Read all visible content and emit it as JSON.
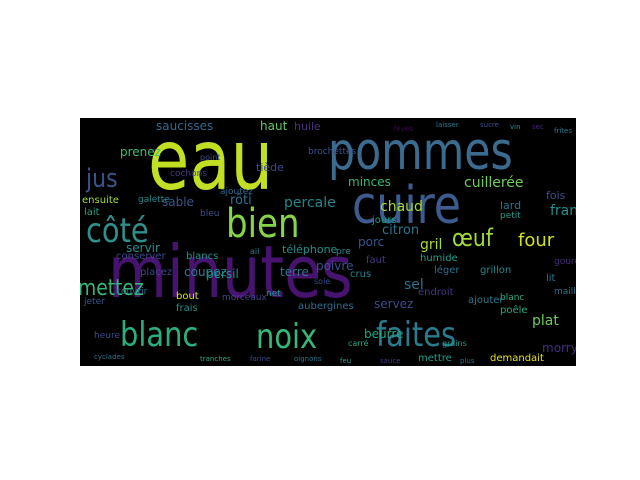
{
  "words": [
    {
      "text": "minutes",
      "color": "#46136e"
    },
    {
      "text": "eau",
      "color": "#c2df23"
    },
    {
      "text": "pommes",
      "color": "#3b6c8f"
    },
    {
      "text": "cuire",
      "color": "#3d5b8e"
    },
    {
      "text": "bien",
      "color": "#86d549"
    },
    {
      "text": "côté",
      "color": "#2e8f8b"
    },
    {
      "text": "blanc",
      "color": "#2ab07f"
    },
    {
      "text": "noix",
      "color": "#37b878"
    },
    {
      "text": "faites",
      "color": "#2a7b8e"
    },
    {
      "text": "jus",
      "color": "#3a548c"
    },
    {
      "text": "œuf",
      "color": "#a2da37"
    },
    {
      "text": "four",
      "color": "#d0e11c"
    },
    {
      "text": "mettez",
      "color": "#35b779"
    },
    {
      "text": "saucisses",
      "color": "#31688e"
    },
    {
      "text": "haut",
      "color": "#5ec962"
    },
    {
      "text": "huile",
      "color": "#4a2f7f"
    },
    {
      "text": "percale",
      "color": "#25848e"
    },
    {
      "text": "sable",
      "color": "#3a548c"
    },
    {
      "text": "rôti",
      "color": "#2c728e"
    },
    {
      "text": "chaud",
      "color": "#a5db36"
    },
    {
      "text": "minces",
      "color": "#35b779"
    },
    {
      "text": "cuillerée",
      "color": "#6ece58"
    },
    {
      "text": "franges",
      "color": "#218f8d"
    },
    {
      "text": "citron",
      "color": "#2c738e"
    },
    {
      "text": "porc",
      "color": "#3b528b"
    },
    {
      "text": "gril",
      "color": "#a8db34"
    },
    {
      "text": "sel",
      "color": "#2d718e"
    },
    {
      "text": "servir",
      "color": "#238a8d"
    },
    {
      "text": "coupez",
      "color": "#287d8e"
    },
    {
      "text": "persil",
      "color": "#218e8d"
    },
    {
      "text": "terre",
      "color": "#2a778e"
    },
    {
      "text": "poivre",
      "color": "#3b528b"
    },
    {
      "text": "téléphone",
      "color": "#21918c"
    },
    {
      "text": "servez",
      "color": "#3e4a89"
    },
    {
      "text": "plat",
      "color": "#6ccd5a"
    },
    {
      "text": "morry",
      "color": "#472d7b"
    },
    {
      "text": "beurre",
      "color": "#22a785"
    },
    {
      "text": "prenez",
      "color": "#3fbc73"
    },
    {
      "text": "tiède",
      "color": "#3e4c8a"
    },
    {
      "text": "lard",
      "color": "#2c728e"
    },
    {
      "text": "fois",
      "color": "#3b528b"
    },
    {
      "text": "ensuite",
      "color": "#a0da39"
    },
    {
      "text": "lait",
      "color": "#20a386"
    },
    {
      "text": "conserver",
      "color": "#3e4989"
    },
    {
      "text": "placez",
      "color": "#3f4788"
    },
    {
      "text": "bout",
      "color": "#d8e219"
    },
    {
      "text": "frais",
      "color": "#21908d"
    },
    {
      "text": "blancs",
      "color": "#20928c"
    },
    {
      "text": "jours",
      "color": "#1f9e89"
    },
    {
      "text": "faut",
      "color": "#443983"
    },
    {
      "text": "humide",
      "color": "#1fa088"
    },
    {
      "text": "ajouter",
      "color": "#2a788e"
    },
    {
      "text": "demandait",
      "color": "#e5e419"
    },
    {
      "text": "mettre",
      "color": "#1fa187"
    },
    {
      "text": "aubergines",
      "color": "#2e6e8e"
    },
    {
      "text": "crus",
      "color": "#26828e"
    },
    {
      "text": "endroit",
      "color": "#453781"
    },
    {
      "text": "poêle",
      "color": "#22a884"
    },
    {
      "text": "léger",
      "color": "#2d708e"
    },
    {
      "text": "grillon",
      "color": "#228c8d"
    },
    {
      "text": "brochettes",
      "color": "#3b528b"
    },
    {
      "text": "cochons",
      "color": "#443983"
    },
    {
      "text": "ajoutez",
      "color": "#31688e"
    },
    {
      "text": "galette",
      "color": "#23898e"
    },
    {
      "text": "petit",
      "color": "#1f9a8a"
    },
    {
      "text": "jeter",
      "color": "#38588c"
    },
    {
      "text": "bleu",
      "color": "#3b528b"
    },
    {
      "text": "couvrir",
      "color": "#2c728e"
    },
    {
      "text": "morceaux",
      "color": "#414487"
    },
    {
      "text": "net",
      "color": "#21918c"
    },
    {
      "text": "pre",
      "color": "#25838e"
    },
    {
      "text": "lit",
      "color": "#2a768e"
    },
    {
      "text": "blanc",
      "color": "#25ab82"
    },
    {
      "text": "heure",
      "color": "#3e4a89"
    },
    {
      "text": "grains",
      "color": "#1f978b"
    },
    {
      "text": "gourdin",
      "color": "#472c7a"
    },
    {
      "text": "mailles",
      "color": "#2c738e"
    },
    {
      "text": "point",
      "color": "#3b528b"
    },
    {
      "text": "cyclades",
      "color": "#2d708e"
    },
    {
      "text": "sole",
      "color": "#3e4c8a"
    },
    {
      "text": "carré",
      "color": "#22a884"
    },
    {
      "text": "ail",
      "color": "#27808e"
    },
    {
      "text": "fèves",
      "color": "#46075a"
    },
    {
      "text": "laisser",
      "color": "#2a788e"
    },
    {
      "text": "sucre",
      "color": "#3b528b"
    },
    {
      "text": "vin",
      "color": "#21918c"
    },
    {
      "text": "sec",
      "color": "#482576"
    },
    {
      "text": "frites",
      "color": "#287c8e"
    },
    {
      "text": "tranches",
      "color": "#25ab82"
    },
    {
      "text": "farine",
      "color": "#3e4989"
    },
    {
      "text": "oignons",
      "color": "#2a778e"
    },
    {
      "text": "feu",
      "color": "#1f9e89"
    },
    {
      "text": "sauce",
      "color": "#453781"
    },
    {
      "text": "plus",
      "color": "#2c738e"
    }
  ]
}
